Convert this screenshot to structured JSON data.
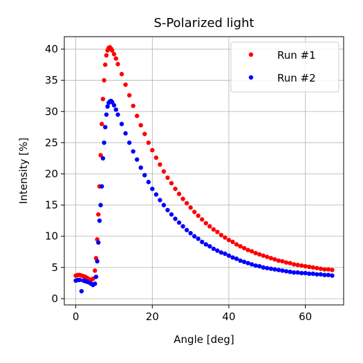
{
  "chart_data": {
    "type": "scatter",
    "title": "S-Polarized light",
    "xlabel": "Angle [deg]",
    "ylabel": "Intensity [%]",
    "xlim": [
      -3,
      70
    ],
    "ylim": [
      -1,
      42
    ],
    "xticks": [
      0,
      20,
      40,
      60
    ],
    "yticks": [
      0,
      5,
      10,
      15,
      20,
      25,
      30,
      35,
      40
    ],
    "grid": true,
    "legend_position": "top-right",
    "series": [
      {
        "name": "Run #1",
        "color": "#ff0000",
        "x": [
          0,
          0.5,
          1,
          1.5,
          2,
          2.5,
          3,
          3.5,
          4,
          4.5,
          5,
          5.3,
          5.6,
          5.9,
          6.2,
          6.5,
          6.8,
          7.1,
          7.4,
          7.7,
          8.0,
          8.3,
          8.6,
          8.9,
          9.2,
          9.5,
          10,
          10.5,
          11,
          12,
          13,
          14,
          15,
          16,
          17,
          18,
          19,
          20,
          21,
          22,
          23,
          24,
          25,
          26,
          27,
          28,
          29,
          30,
          31,
          32,
          33,
          34,
          35,
          36,
          37,
          38,
          39,
          40,
          41,
          42,
          43,
          44,
          45,
          46,
          47,
          48,
          49,
          50,
          51,
          52,
          53,
          54,
          55,
          56,
          57,
          58,
          59,
          60,
          61,
          62,
          63,
          64,
          65,
          66,
          67
        ],
        "y": [
          3.7,
          3.8,
          3.8,
          3.7,
          3.6,
          3.5,
          3.3,
          3.1,
          3.0,
          3.2,
          4.5,
          6.5,
          9.5,
          13.5,
          18,
          23,
          28,
          32,
          35,
          37.5,
          39,
          39.8,
          40.2,
          40.3,
          40.1,
          39.8,
          39.2,
          38.5,
          37.6,
          36,
          34.3,
          32.6,
          30.9,
          29.3,
          27.8,
          26.4,
          25.0,
          23.8,
          22.6,
          21.5,
          20.4,
          19.4,
          18.5,
          17.6,
          16.8,
          16.0,
          15.3,
          14.6,
          13.9,
          13.3,
          12.7,
          12.1,
          11.6,
          11.1,
          10.7,
          10.2,
          9.8,
          9.4,
          9.1,
          8.7,
          8.4,
          8.1,
          7.8,
          7.6,
          7.3,
          7.1,
          6.9,
          6.7,
          6.5,
          6.3,
          6.1,
          6.0,
          5.8,
          5.7,
          5.5,
          5.4,
          5.3,
          5.2,
          5.1,
          5.0,
          4.9,
          4.8,
          4.7,
          4.7,
          4.6
        ]
      },
      {
        "name": "Run #2",
        "color": "#0000ff",
        "x": [
          0,
          0.5,
          1,
          1.5,
          2,
          2.5,
          3,
          3.5,
          4,
          4.5,
          5,
          5.3,
          5.6,
          5.9,
          6.2,
          6.5,
          6.8,
          7.1,
          7.4,
          7.7,
          8.0,
          8.3,
          8.6,
          8.9,
          9.2,
          9.5,
          10,
          10.5,
          11,
          12,
          13,
          14,
          15,
          16,
          17,
          18,
          19,
          20,
          21,
          22,
          23,
          24,
          25,
          26,
          27,
          28,
          29,
          30,
          31,
          32,
          33,
          34,
          35,
          36,
          37,
          38,
          39,
          40,
          41,
          42,
          43,
          44,
          45,
          46,
          47,
          48,
          49,
          50,
          51,
          52,
          53,
          54,
          55,
          56,
          57,
          58,
          59,
          60,
          61,
          62,
          63,
          64,
          65,
          66,
          67
        ],
        "y": [
          2.9,
          3.0,
          3.0,
          1.2,
          2.9,
          2.8,
          2.7,
          2.6,
          2.4,
          2.2,
          2.4,
          3.5,
          6.0,
          9.0,
          12.5,
          15,
          18,
          22.5,
          25,
          27.5,
          29.5,
          30.8,
          31.4,
          31.6,
          31.7,
          31.5,
          31.0,
          30.3,
          29.5,
          28.0,
          26.5,
          25.0,
          23.6,
          22.3,
          21.0,
          19.8,
          18.7,
          17.6,
          16.7,
          15.8,
          15.0,
          14.2,
          13.5,
          12.8,
          12.2,
          11.6,
          11.0,
          10.5,
          10.0,
          9.6,
          9.1,
          8.7,
          8.4,
          8.0,
          7.7,
          7.4,
          7.2,
          6.9,
          6.6,
          6.4,
          6.1,
          5.9,
          5.7,
          5.5,
          5.3,
          5.2,
          5.0,
          4.9,
          4.8,
          4.7,
          4.6,
          4.5,
          4.4,
          4.3,
          4.2,
          4.2,
          4.1,
          4.1,
          4.0,
          4.0,
          3.9,
          3.9,
          3.8,
          3.8,
          3.7
        ]
      }
    ]
  }
}
